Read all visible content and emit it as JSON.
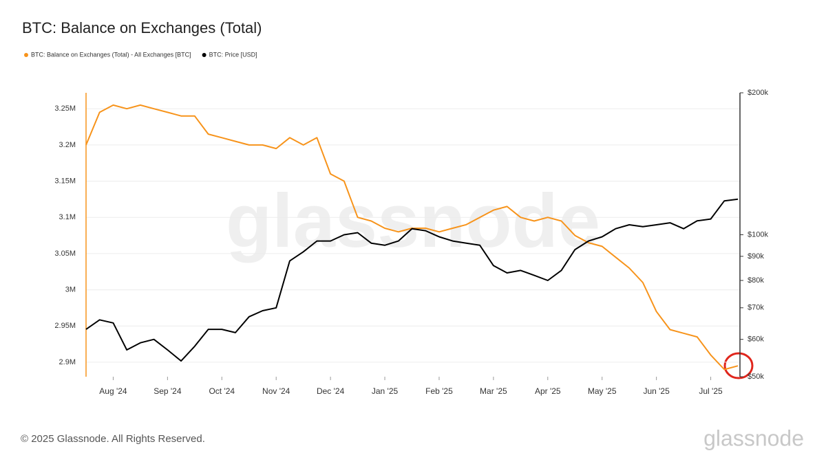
{
  "title": "BTC: Balance on Exchanges (Total)",
  "footer": "© 2025 Glassnode. All Rights Reserved.",
  "brand": "glassnode",
  "chart_data": {
    "type": "line",
    "categories": [
      null,
      null,
      "Aug '24",
      null,
      null,
      null,
      "Sep '24",
      null,
      null,
      null,
      "Oct '24",
      null,
      null,
      null,
      "Nov '24",
      null,
      null,
      null,
      "Dec '24",
      null,
      null,
      null,
      "Jan '25",
      null,
      null,
      null,
      "Feb '25",
      null,
      null,
      null,
      "Mar '25",
      null,
      null,
      null,
      "Apr '25",
      null,
      null,
      null,
      "May '25",
      null,
      null,
      null,
      "Jun '25",
      null,
      null,
      null,
      "Jul '25",
      null,
      null
    ],
    "series": [
      {
        "name": "BTC: Balance on Exchanges (Total) - All Exchanges [BTC]",
        "color": "#f7931a",
        "axis": "y",
        "values": [
          3200000,
          3245000,
          3255000,
          3250000,
          3255000,
          3250000,
          3245000,
          3240000,
          3240000,
          3215000,
          3210000,
          3205000,
          3200000,
          3200000,
          3195000,
          3210000,
          3200000,
          3210000,
          3160000,
          3150000,
          3100000,
          3095000,
          3085000,
          3080000,
          3085000,
          3085000,
          3080000,
          3085000,
          3090000,
          3100000,
          3110000,
          3115000,
          3100000,
          3095000,
          3100000,
          3095000,
          3075000,
          3065000,
          3060000,
          3045000,
          3030000,
          3010000,
          2970000,
          2945000,
          2940000,
          2935000,
          2910000,
          2890000,
          2895000
        ]
      },
      {
        "name": "BTC: Price [USD]",
        "color": "#000000",
        "axis": "y2",
        "values": [
          63000,
          66000,
          65000,
          57000,
          59000,
          60000,
          57000,
          54000,
          58000,
          63000,
          63000,
          62000,
          67000,
          69000,
          70000,
          88000,
          92000,
          97000,
          97000,
          100000,
          101000,
          96000,
          95000,
          97000,
          103000,
          102000,
          99000,
          97000,
          96000,
          95000,
          86000,
          83000,
          84000,
          82000,
          80000,
          84000,
          93000,
          97000,
          99000,
          103000,
          105000,
          104000,
          105000,
          106000,
          103000,
          107000,
          108000,
          118000,
          119000
        ]
      }
    ],
    "ylim": [
      2880000,
      3272000
    ],
    "yticks": [
      {
        "value": 2900000,
        "label": "2.9M"
      },
      {
        "value": 2950000,
        "label": "2.95M"
      },
      {
        "value": 3000000,
        "label": "3M"
      },
      {
        "value": 3050000,
        "label": "3.05M"
      },
      {
        "value": 3100000,
        "label": "3.1M"
      },
      {
        "value": 3150000,
        "label": "3.15M"
      },
      {
        "value": 3200000,
        "label": "3.2M"
      },
      {
        "value": 3250000,
        "label": "3.25M"
      }
    ],
    "y2lim": [
      50000,
      200000
    ],
    "y2scale": "log",
    "y2ticks": [
      {
        "value": 50000,
        "label": "$50k"
      },
      {
        "value": 60000,
        "label": "$60k"
      },
      {
        "value": 70000,
        "label": "$70k"
      },
      {
        "value": 80000,
        "label": "$80k"
      },
      {
        "value": 90000,
        "label": "$90k"
      },
      {
        "value": 100000,
        "label": "$100k"
      },
      {
        "value": 200000,
        "label": "$200k"
      }
    ],
    "grid": true
  }
}
